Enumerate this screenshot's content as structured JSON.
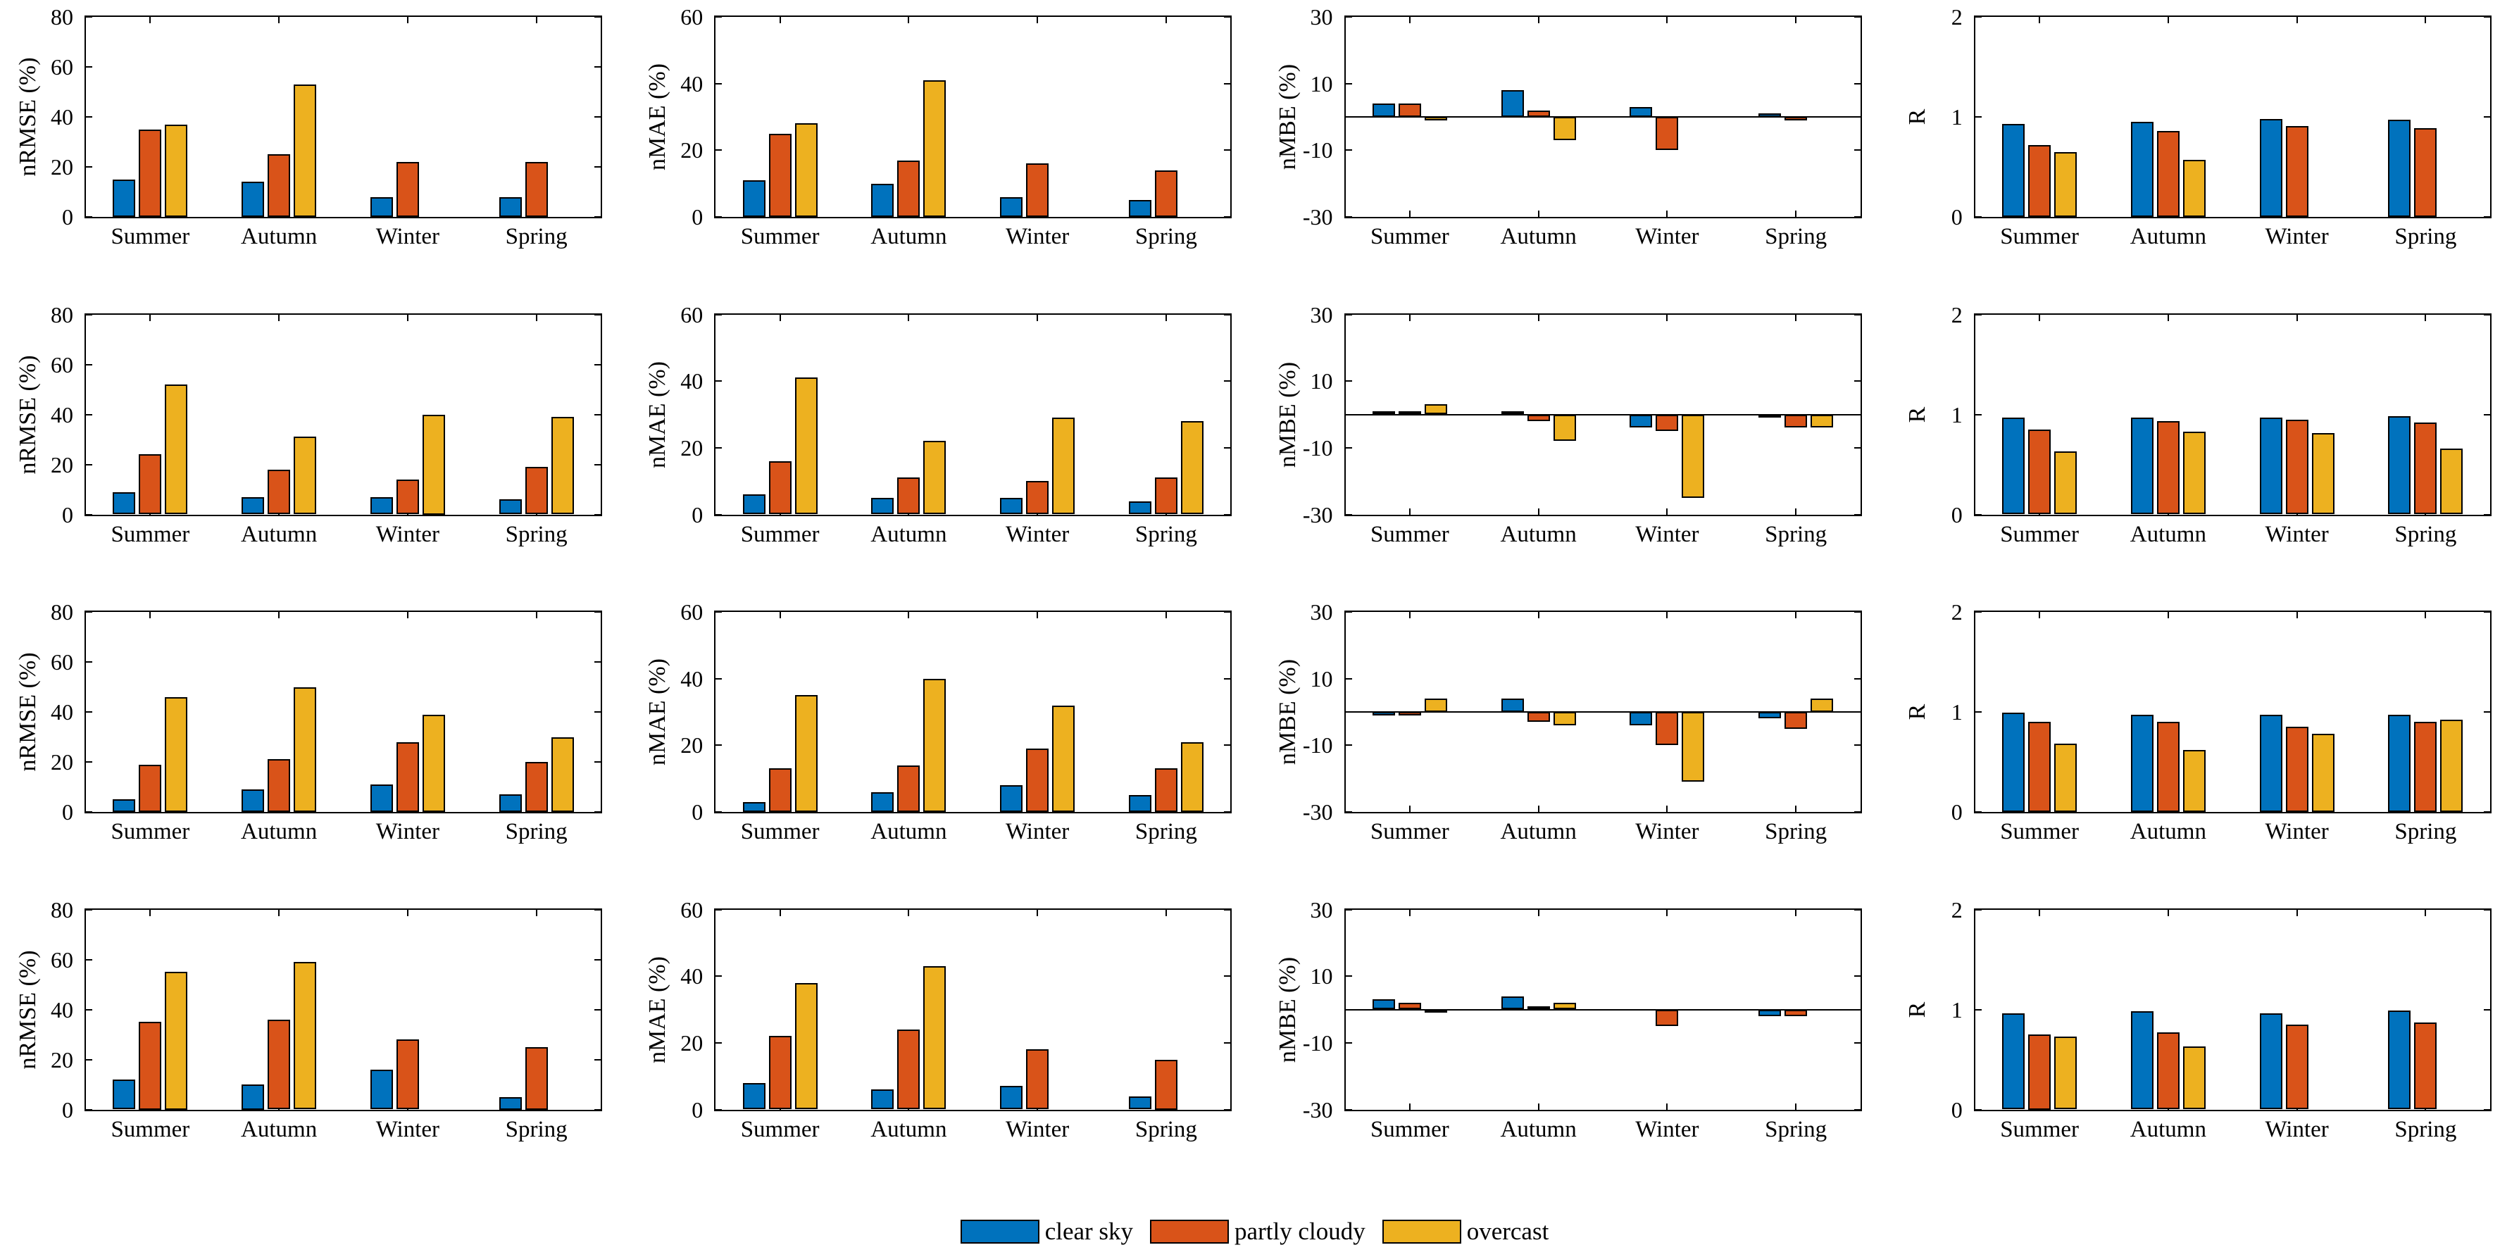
{
  "figure": {
    "background": "#ffffff"
  },
  "legend": {
    "items": [
      {
        "label": "clear sky",
        "color": "#0072BD"
      },
      {
        "label": "partly cloudy",
        "color": "#D95319"
      },
      {
        "label": "overcast",
        "color": "#EDB120"
      }
    ]
  },
  "categories": [
    "Summer",
    "Autumn",
    "Winter",
    "Spring"
  ],
  "chart_data": [
    {
      "type": "bar",
      "row": 1,
      "col": 1,
      "ylabel": "nRMSE (%)",
      "ylim": [
        0,
        80
      ],
      "yticks": [
        0,
        20,
        40,
        60,
        80
      ],
      "series": [
        {
          "name": "clear sky",
          "values": [
            15,
            14,
            8,
            8
          ]
        },
        {
          "name": "partly cloudy",
          "values": [
            35,
            25,
            22,
            22
          ]
        },
        {
          "name": "overcast",
          "values": [
            37,
            53,
            0,
            0
          ]
        }
      ]
    },
    {
      "type": "bar",
      "row": 1,
      "col": 2,
      "ylabel": "nMAE (%)",
      "ylim": [
        0,
        60
      ],
      "yticks": [
        0,
        20,
        40,
        60
      ],
      "series": [
        {
          "name": "clear sky",
          "values": [
            11,
            10,
            6,
            5
          ]
        },
        {
          "name": "partly cloudy",
          "values": [
            25,
            17,
            16,
            14
          ]
        },
        {
          "name": "overcast",
          "values": [
            28,
            41,
            0,
            0
          ]
        }
      ]
    },
    {
      "type": "bar",
      "row": 1,
      "col": 3,
      "ylabel": "nMBE (%)",
      "ylim": [
        -30,
        30
      ],
      "yticks": [
        -30,
        -10,
        10,
        30
      ],
      "series": [
        {
          "name": "clear sky",
          "values": [
            4,
            8,
            3,
            1
          ]
        },
        {
          "name": "partly cloudy",
          "values": [
            4,
            2,
            -10,
            -1
          ]
        },
        {
          "name": "overcast",
          "values": [
            -1,
            -7,
            0,
            0
          ]
        }
      ]
    },
    {
      "type": "bar",
      "row": 1,
      "col": 4,
      "ylabel": "R",
      "ylim": [
        0,
        2
      ],
      "yticks": [
        0,
        1,
        2
      ],
      "series": [
        {
          "name": "clear sky",
          "values": [
            0.93,
            0.95,
            0.98,
            0.97
          ]
        },
        {
          "name": "partly cloudy",
          "values": [
            0.72,
            0.86,
            0.91,
            0.89
          ]
        },
        {
          "name": "overcast",
          "values": [
            0.65,
            0.57,
            0,
            0
          ]
        }
      ]
    },
    {
      "type": "bar",
      "row": 2,
      "col": 1,
      "ylabel": "nRMSE (%)",
      "ylim": [
        0,
        80
      ],
      "yticks": [
        0,
        20,
        40,
        60,
        80
      ],
      "series": [
        {
          "name": "clear sky",
          "values": [
            9,
            7,
            7,
            6
          ]
        },
        {
          "name": "partly cloudy",
          "values": [
            24,
            18,
            14,
            19
          ]
        },
        {
          "name": "overcast",
          "values": [
            52,
            31,
            40,
            39
          ]
        }
      ]
    },
    {
      "type": "bar",
      "row": 2,
      "col": 2,
      "ylabel": "nMAE (%)",
      "ylim": [
        0,
        60
      ],
      "yticks": [
        0,
        20,
        40,
        60
      ],
      "series": [
        {
          "name": "clear sky",
          "values": [
            6,
            5,
            5,
            4
          ]
        },
        {
          "name": "partly cloudy",
          "values": [
            16,
            11,
            10,
            11
          ]
        },
        {
          "name": "overcast",
          "values": [
            41,
            22,
            29,
            28
          ]
        }
      ]
    },
    {
      "type": "bar",
      "row": 2,
      "col": 3,
      "ylabel": "nMBE (%)",
      "ylim": [
        -30,
        30
      ],
      "yticks": [
        -30,
        -10,
        10,
        30
      ],
      "series": [
        {
          "name": "clear sky",
          "values": [
            1,
            1,
            -4,
            -1
          ]
        },
        {
          "name": "partly cloudy",
          "values": [
            1,
            -2,
            -5,
            -4
          ]
        },
        {
          "name": "overcast",
          "values": [
            3,
            -8,
            -25,
            -4
          ]
        }
      ]
    },
    {
      "type": "bar",
      "row": 2,
      "col": 4,
      "ylabel": "R",
      "ylim": [
        0,
        2
      ],
      "yticks": [
        0,
        1,
        2
      ],
      "series": [
        {
          "name": "clear sky",
          "values": [
            0.97,
            0.97,
            0.97,
            0.98
          ]
        },
        {
          "name": "partly cloudy",
          "values": [
            0.85,
            0.93,
            0.95,
            0.92
          ]
        },
        {
          "name": "overcast",
          "values": [
            0.63,
            0.83,
            0.81,
            0.66
          ]
        }
      ]
    },
    {
      "type": "bar",
      "row": 3,
      "col": 1,
      "ylabel": "nRMSE (%)",
      "ylim": [
        0,
        80
      ],
      "yticks": [
        0,
        20,
        40,
        60,
        80
      ],
      "series": [
        {
          "name": "clear sky",
          "values": [
            5,
            9,
            11,
            7
          ]
        },
        {
          "name": "partly cloudy",
          "values": [
            19,
            21,
            28,
            20
          ]
        },
        {
          "name": "overcast",
          "values": [
            46,
            50,
            39,
            30
          ]
        }
      ]
    },
    {
      "type": "bar",
      "row": 3,
      "col": 2,
      "ylabel": "nMAE (%)",
      "ylim": [
        0,
        60
      ],
      "yticks": [
        0,
        20,
        40,
        60
      ],
      "series": [
        {
          "name": "clear sky",
          "values": [
            3,
            6,
            8,
            5
          ]
        },
        {
          "name": "partly cloudy",
          "values": [
            13,
            14,
            19,
            13
          ]
        },
        {
          "name": "overcast",
          "values": [
            35,
            40,
            32,
            21
          ]
        }
      ]
    },
    {
      "type": "bar",
      "row": 3,
      "col": 3,
      "ylabel": "nMBE (%)",
      "ylim": [
        -30,
        30
      ],
      "yticks": [
        -30,
        -10,
        10,
        30
      ],
      "series": [
        {
          "name": "clear sky",
          "values": [
            -1,
            4,
            -4,
            -2
          ]
        },
        {
          "name": "partly cloudy",
          "values": [
            -1,
            -3,
            -10,
            -5
          ]
        },
        {
          "name": "overcast",
          "values": [
            4,
            -4,
            -21,
            4
          ]
        }
      ]
    },
    {
      "type": "bar",
      "row": 3,
      "col": 4,
      "ylabel": "R",
      "ylim": [
        0,
        2
      ],
      "yticks": [
        0,
        1,
        2
      ],
      "series": [
        {
          "name": "clear sky",
          "values": [
            0.99,
            0.97,
            0.97,
            0.97
          ]
        },
        {
          "name": "partly cloudy",
          "values": [
            0.9,
            0.9,
            0.85,
            0.9
          ]
        },
        {
          "name": "overcast",
          "values": [
            0.68,
            0.62,
            0.78,
            0.92
          ]
        }
      ]
    },
    {
      "type": "bar",
      "row": 4,
      "col": 1,
      "ylabel": "nRMSE (%)",
      "ylim": [
        0,
        80
      ],
      "yticks": [
        0,
        20,
        40,
        60,
        80
      ],
      "series": [
        {
          "name": "clear sky",
          "values": [
            12,
            10,
            16,
            5
          ]
        },
        {
          "name": "partly cloudy",
          "values": [
            35,
            36,
            28,
            25
          ]
        },
        {
          "name": "overcast",
          "values": [
            55,
            59,
            0,
            0
          ]
        }
      ]
    },
    {
      "type": "bar",
      "row": 4,
      "col": 2,
      "ylabel": "nMAE (%)",
      "ylim": [
        0,
        60
      ],
      "yticks": [
        0,
        20,
        40,
        60
      ],
      "series": [
        {
          "name": "clear sky",
          "values": [
            8,
            6,
            7,
            4
          ]
        },
        {
          "name": "partly cloudy",
          "values": [
            22,
            24,
            18,
            15
          ]
        },
        {
          "name": "overcast",
          "values": [
            38,
            43,
            0,
            0
          ]
        }
      ]
    },
    {
      "type": "bar",
      "row": 4,
      "col": 3,
      "ylabel": "nMBE (%)",
      "ylim": [
        -30,
        30
      ],
      "yticks": [
        -30,
        -10,
        10,
        30
      ],
      "series": [
        {
          "name": "clear sky",
          "values": [
            3,
            4,
            0,
            -2
          ]
        },
        {
          "name": "partly cloudy",
          "values": [
            2,
            1,
            -5,
            -2
          ]
        },
        {
          "name": "overcast",
          "values": [
            -1,
            2,
            0,
            0
          ]
        }
      ]
    },
    {
      "type": "bar",
      "row": 4,
      "col": 4,
      "ylabel": "R",
      "ylim": [
        0,
        2
      ],
      "yticks": [
        0,
        1,
        2
      ],
      "series": [
        {
          "name": "clear sky",
          "values": [
            0.96,
            0.98,
            0.96,
            0.99
          ]
        },
        {
          "name": "partly cloudy",
          "values": [
            0.75,
            0.77,
            0.85,
            0.87
          ]
        },
        {
          "name": "overcast",
          "values": [
            0.73,
            0.63,
            0,
            0
          ]
        }
      ]
    }
  ]
}
